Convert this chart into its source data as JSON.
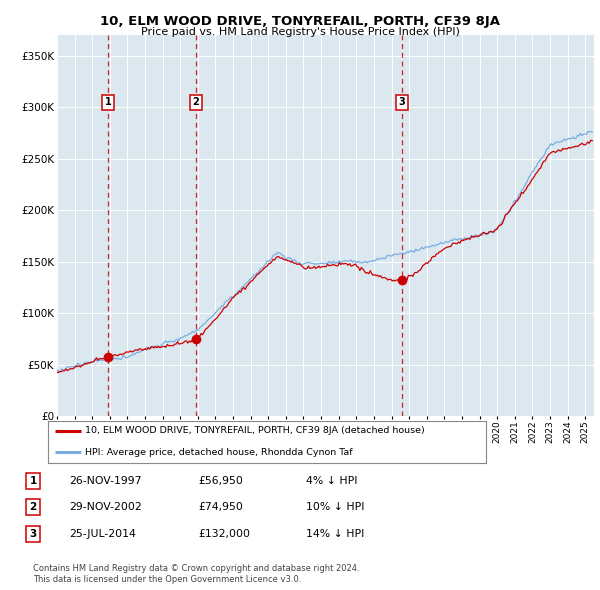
{
  "title": "10, ELM WOOD DRIVE, TONYREFAIL, PORTH, CF39 8JA",
  "subtitle": "Price paid vs. HM Land Registry's House Price Index (HPI)",
  "sale_dates_float": [
    1997.9,
    2002.9,
    2014.58
  ],
  "sale_prices": [
    56950,
    74950,
    132000
  ],
  "sale_labels": [
    "1",
    "2",
    "3"
  ],
  "sale_label_info": [
    {
      "num": "1",
      "date": "26-NOV-1997",
      "price": "£56,950",
      "hpi": "4% ↓ HPI"
    },
    {
      "num": "2",
      "date": "29-NOV-2002",
      "price": "£74,950",
      "hpi": "10% ↓ HPI"
    },
    {
      "num": "3",
      "date": "25-JUL-2014",
      "price": "£132,000",
      "hpi": "14% ↓ HPI"
    }
  ],
  "legend_line1": "10, ELM WOOD DRIVE, TONYREFAIL, PORTH, CF39 8JA (detached house)",
  "legend_line2": "HPI: Average price, detached house, Rhondda Cynon Taf",
  "footer1": "Contains HM Land Registry data © Crown copyright and database right 2024.",
  "footer2": "This data is licensed under the Open Government Licence v3.0.",
  "price_line_color": "#cc0000",
  "hpi_line_color": "#7aade0",
  "dashed_line_color": "#cc0000",
  "marker_color": "#cc0000",
  "background_color": "#ffffff",
  "plot_bg_color": "#dce8f0",
  "grid_color": "#ffffff",
  "ylim": [
    0,
    370000
  ],
  "yticks": [
    0,
    50000,
    100000,
    150000,
    200000,
    250000,
    300000,
    350000
  ],
  "ytick_labels": [
    "£0",
    "£50K",
    "£100K",
    "£150K",
    "£200K",
    "£250K",
    "£300K",
    "£350K"
  ],
  "xlim": [
    1995,
    2025.5
  ],
  "xtick_years": [
    1995,
    1996,
    1997,
    1998,
    1999,
    2000,
    2001,
    2002,
    2003,
    2004,
    2005,
    2006,
    2007,
    2008,
    2009,
    2010,
    2011,
    2012,
    2013,
    2014,
    2015,
    2016,
    2017,
    2018,
    2019,
    2020,
    2021,
    2022,
    2023,
    2024,
    2025
  ]
}
